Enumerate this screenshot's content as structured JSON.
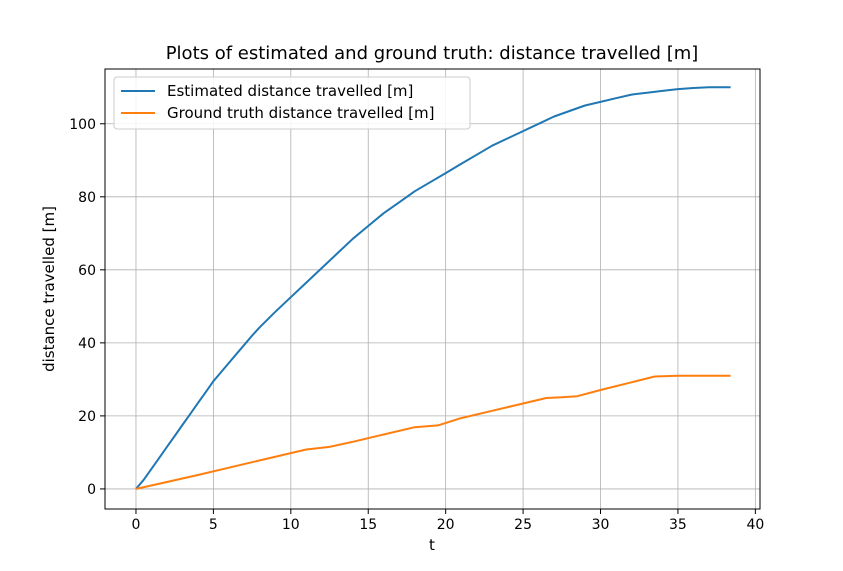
{
  "chart_data": {
    "type": "line",
    "title": "Plots of estimated and ground truth: distance travelled [m]",
    "xlabel": "t",
    "ylabel": "distance travelled [m]",
    "xlim": [
      -2,
      40.3
    ],
    "ylim": [
      -5.5,
      115
    ],
    "xticks": [
      0,
      5,
      10,
      15,
      20,
      25,
      30,
      35,
      40
    ],
    "yticks": [
      0,
      20,
      40,
      60,
      80,
      100
    ],
    "grid": true,
    "legend_position": "top-left",
    "series": [
      {
        "name": "Estimated distance travelled [m]",
        "color": "#1f77b4",
        "x": [
          0,
          0.5,
          1,
          1.5,
          2,
          2.5,
          3,
          3.5,
          4,
          4.5,
          5,
          5.5,
          6,
          6.5,
          7,
          7.5,
          8,
          9,
          10,
          11,
          12,
          13,
          14,
          15,
          16,
          17,
          18,
          19,
          20,
          21,
          22,
          23,
          24,
          25,
          26,
          27,
          28,
          29,
          30,
          31,
          32,
          33,
          34,
          35,
          36,
          37,
          38.4
        ],
        "y": [
          0,
          2.5,
          5.5,
          8.5,
          11.5,
          14.5,
          17.5,
          20.5,
          23.5,
          26.5,
          29.5,
          32,
          34.5,
          37,
          39.5,
          42,
          44.3,
          48.5,
          52.5,
          56.5,
          60.5,
          64.5,
          68.5,
          72,
          75.5,
          78.5,
          81.5,
          84,
          86.5,
          89,
          91.5,
          94,
          96,
          98,
          100,
          102,
          103.5,
          105,
          106,
          107,
          108,
          108.5,
          109,
          109.5,
          109.8,
          110,
          110
        ]
      },
      {
        "name": "Ground truth distance travelled [m]",
        "color": "#ff7f0e",
        "x": [
          0,
          2,
          4,
          6,
          8,
          10,
          11,
          12,
          12.5,
          14,
          16,
          18,
          19.5,
          21,
          23,
          25,
          26.5,
          27.5,
          28.5,
          30,
          32,
          33.5,
          35,
          36,
          38.4
        ],
        "y": [
          0,
          1.9,
          3.8,
          5.8,
          7.8,
          9.8,
          10.8,
          11.3,
          11.5,
          12.9,
          14.9,
          16.9,
          17.4,
          19.4,
          21.4,
          23.4,
          24.9,
          25.1,
          25.4,
          27.1,
          29.2,
          30.8,
          31,
          31,
          31
        ]
      }
    ]
  }
}
